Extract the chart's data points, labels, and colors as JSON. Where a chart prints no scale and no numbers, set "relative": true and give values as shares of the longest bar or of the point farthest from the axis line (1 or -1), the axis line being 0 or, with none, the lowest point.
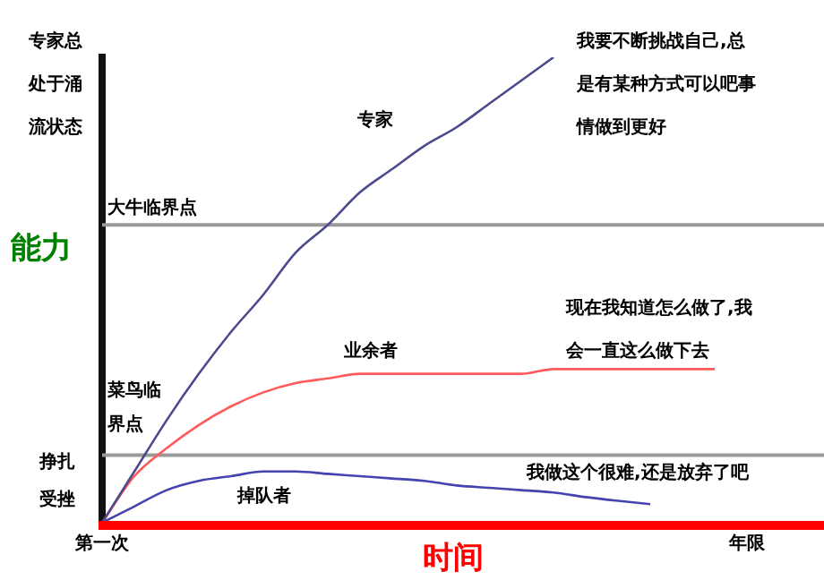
{
  "chart_data": {
    "type": "line",
    "relative": true,
    "xlabel": "时间",
    "ylabel": "能力",
    "categories": [
      "第一次",
      null,
      null,
      null,
      null,
      null,
      null,
      null,
      null,
      null,
      null,
      null,
      null,
      null,
      null,
      null,
      null,
      null,
      null,
      null,
      "年限"
    ],
    "series": [
      {
        "name": "专家",
        "color": "#4a4a8c",
        "values": [
          0,
          0.11,
          0.22,
          0.32,
          0.41,
          0.49,
          0.58,
          0.64,
          0.71,
          0.76,
          0.81,
          0.85,
          0.9,
          0.95,
          1,
          null,
          null,
          null,
          null,
          null,
          null
        ]
      },
      {
        "name": "业余者",
        "color": "#ff5a5a",
        "values": [
          0,
          0.1,
          0.16,
          0.21,
          0.25,
          0.28,
          0.3,
          0.31,
          0.32,
          0.32,
          0.32,
          0.32,
          0.32,
          0.32,
          0.33,
          0.33,
          0.33,
          0.33,
          0.33,
          0.33,
          null
        ]
      },
      {
        "name": "掉队者",
        "color": "#4444b0",
        "values": [
          0,
          0.035,
          0.07,
          0.09,
          0.1,
          0.11,
          0.11,
          0.105,
          0.1,
          0.095,
          0.09,
          0.08,
          0.075,
          0.07,
          0.065,
          0.055,
          0.047,
          0.04,
          null,
          null,
          null
        ]
      }
    ],
    "ref_lines": [
      {
        "axis": "y",
        "value": 0.64,
        "label": "大牛临界点",
        "color": "#999999"
      },
      {
        "axis": "y",
        "value": 0.145,
        "label": "菜鸟临界点",
        "color": "#999999"
      }
    ],
    "annotations": [
      "专家总处于涌流状态",
      "挣扎受挫",
      "我要不断挑战自己,总是有某种方式可以吧事情做到更好",
      "现在我知道怎么做了,我会一直这么做下去",
      "我做这个很难,还是放弃了吧"
    ],
    "legend": false,
    "marker": "none",
    "line_style": "solid"
  }
}
